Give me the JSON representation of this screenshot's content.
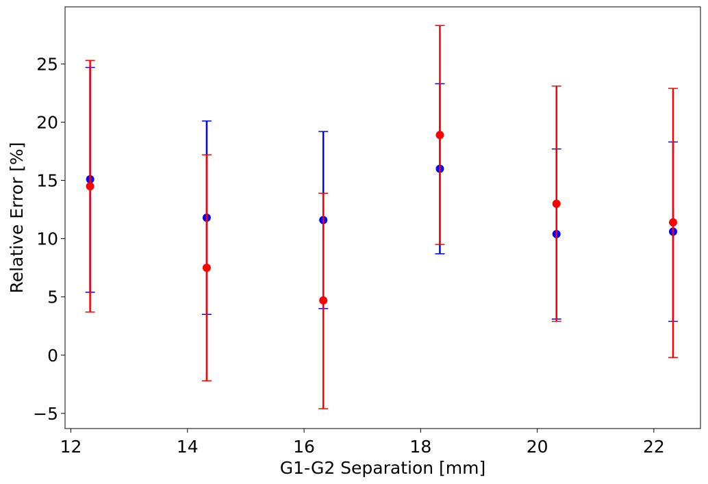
{
  "chart_data": {
    "type": "scatter",
    "title": "",
    "xlabel": "G1-G2 Separation [mm]",
    "ylabel": "Relative Error [%]",
    "xlim": [
      11.9,
      22.8
    ],
    "ylim": [
      -6.3,
      29.9
    ],
    "xticks": [
      12,
      14,
      16,
      18,
      20,
      22
    ],
    "yticks": [
      -5,
      0,
      5,
      10,
      15,
      20,
      25
    ],
    "xtick_labels": [
      "12",
      "14",
      "16",
      "18",
      "20",
      "22"
    ],
    "ytick_labels": [
      "−5",
      "0",
      "5",
      "10",
      "15",
      "20",
      "25"
    ],
    "grid": false,
    "legend": "none",
    "series": [
      {
        "color": "#0000ff",
        "x": [
          12.33,
          14.33,
          16.33,
          18.33,
          20.33,
          22.33
        ],
        "y": [
          15.1,
          11.8,
          11.6,
          16.0,
          10.4,
          10.6
        ],
        "err_low": [
          5.4,
          3.5,
          4.0,
          8.7,
          3.1,
          2.9
        ],
        "err_high": [
          24.7,
          20.1,
          19.2,
          23.3,
          17.7,
          18.3
        ]
      },
      {
        "color": "#ff0000",
        "x": [
          12.33,
          14.33,
          16.33,
          18.33,
          20.33,
          22.33
        ],
        "y": [
          14.5,
          7.5,
          4.7,
          18.9,
          13.0,
          11.4
        ],
        "err_low": [
          3.7,
          -2.2,
          -4.6,
          9.5,
          2.9,
          -0.2
        ],
        "err_high": [
          25.3,
          17.2,
          13.9,
          28.3,
          23.1,
          22.9
        ]
      }
    ]
  }
}
